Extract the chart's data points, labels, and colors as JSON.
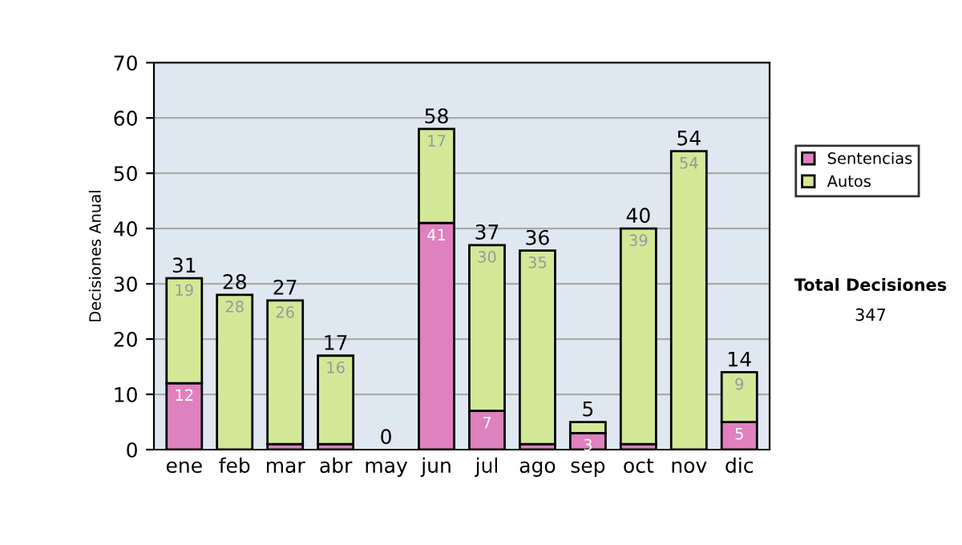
{
  "chart_data": {
    "type": "bar",
    "stacked": true,
    "ylabel": "Decisiones Anual",
    "categories": [
      "ene",
      "feb",
      "mar",
      "abr",
      "may",
      "jun",
      "jul",
      "ago",
      "sep",
      "oct",
      "nov",
      "dic"
    ],
    "series": [
      {
        "name": "Sentencias",
        "color": "#df80bf",
        "values": [
          12,
          0,
          1,
          1,
          0,
          41,
          7,
          1,
          3,
          1,
          0,
          5
        ],
        "value_labels": [
          "12",
          null,
          null,
          null,
          null,
          "41",
          "7",
          null,
          "3",
          null,
          null,
          "5"
        ]
      },
      {
        "name": "Autos",
        "color": "#d3e897",
        "values": [
          19,
          28,
          26,
          16,
          0,
          17,
          30,
          35,
          2,
          39,
          54,
          9
        ],
        "value_labels": [
          "19",
          "28",
          "26",
          "16",
          null,
          "17",
          "30",
          "35",
          null,
          "39",
          "54",
          "9"
        ]
      }
    ],
    "totals": [
      "31",
      "28",
      "27",
      "17",
      "0",
      "58",
      "37",
      "36",
      "5",
      "40",
      "54",
      "14"
    ],
    "ylim": [
      0,
      70
    ],
    "yticks": [
      0,
      10,
      20,
      30,
      40,
      50,
      60,
      70
    ],
    "grid": "y",
    "legend": "right",
    "annotations": [
      "Total Decisiones",
      "347"
    ]
  }
}
